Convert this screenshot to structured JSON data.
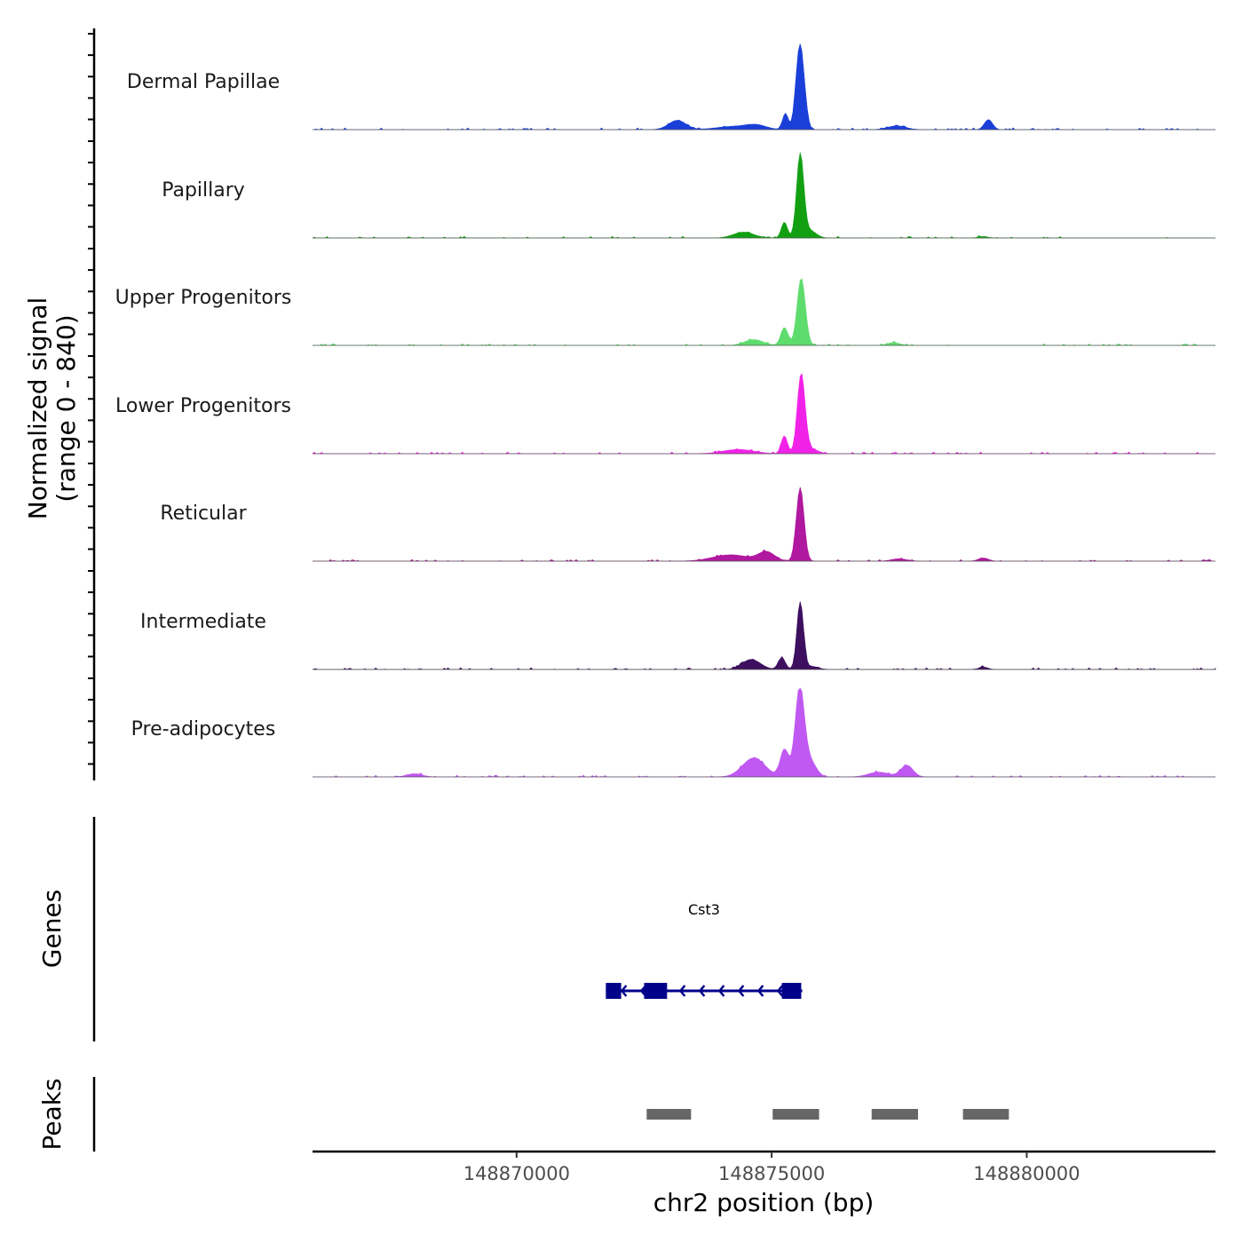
{
  "chart_data": {
    "type": "area",
    "title": "",
    "chromosome": "chr2",
    "xlabel": "chr2 position (bp)",
    "ylabel_line1": "Normalized signal",
    "ylabel_line2": "(range 0 - 840)",
    "y_range": [
      0,
      840
    ],
    "x_range": [
      148866000,
      148883700
    ],
    "x_ticks": [
      148870000,
      148875000,
      148880000
    ],
    "x_tick_labels": [
      "148870000",
      "148875000",
      "148880000"
    ],
    "tracks": [
      {
        "name": "Dermal Papillae",
        "color": "#1a3fd9",
        "peaks": [
          {
            "pos": 148873150,
            "height": 88,
            "width": 170
          },
          {
            "pos": 148874250,
            "height": 30,
            "width": 330
          },
          {
            "pos": 148874700,
            "height": 38,
            "width": 200
          },
          {
            "pos": 148875270,
            "height": 155,
            "width": 55
          },
          {
            "pos": 148875550,
            "height": 780,
            "width": 75
          },
          {
            "pos": 148875650,
            "height": 120,
            "width": 60
          },
          {
            "pos": 148877450,
            "height": 35,
            "width": 180
          },
          {
            "pos": 148879250,
            "height": 95,
            "width": 80
          }
        ]
      },
      {
        "name": "Papillary",
        "color": "#12a012",
        "peaks": [
          {
            "pos": 148874450,
            "height": 55,
            "width": 200
          },
          {
            "pos": 148875250,
            "height": 150,
            "width": 60
          },
          {
            "pos": 148875560,
            "height": 790,
            "width": 70
          },
          {
            "pos": 148875750,
            "height": 70,
            "width": 120
          },
          {
            "pos": 148879150,
            "height": 14,
            "width": 90
          }
        ]
      },
      {
        "name": "Upper Progenitors",
        "color": "#5edc6e",
        "peaks": [
          {
            "pos": 148874650,
            "height": 55,
            "width": 180
          },
          {
            "pos": 148875250,
            "height": 170,
            "width": 70
          },
          {
            "pos": 148875580,
            "height": 640,
            "width": 80
          },
          {
            "pos": 148877400,
            "height": 25,
            "width": 120
          }
        ]
      },
      {
        "name": "Lower Progenitors",
        "color": "#f122e8",
        "peaks": [
          {
            "pos": 148874350,
            "height": 40,
            "width": 300
          },
          {
            "pos": 148875250,
            "height": 170,
            "width": 60
          },
          {
            "pos": 148875580,
            "height": 760,
            "width": 75
          },
          {
            "pos": 148875800,
            "height": 40,
            "width": 120
          }
        ]
      },
      {
        "name": "Reticular",
        "color": "#b0189f",
        "peaks": [
          {
            "pos": 148874200,
            "height": 60,
            "width": 350
          },
          {
            "pos": 148874900,
            "height": 85,
            "width": 160
          },
          {
            "pos": 148875560,
            "height": 700,
            "width": 75
          },
          {
            "pos": 148877500,
            "height": 22,
            "width": 150
          },
          {
            "pos": 148879150,
            "height": 30,
            "width": 100
          }
        ]
      },
      {
        "name": "Intermediate",
        "color": "#3d0f5e",
        "peaks": [
          {
            "pos": 148874600,
            "height": 95,
            "width": 180
          },
          {
            "pos": 148875200,
            "height": 110,
            "width": 70
          },
          {
            "pos": 148875560,
            "height": 640,
            "width": 65
          },
          {
            "pos": 148875800,
            "height": 28,
            "width": 120
          },
          {
            "pos": 148879150,
            "height": 22,
            "width": 90
          }
        ]
      },
      {
        "name": "Pre-adipocytes",
        "color": "#c058f2",
        "peaks": [
          {
            "pos": 148868000,
            "height": 30,
            "width": 150
          },
          {
            "pos": 148874650,
            "height": 180,
            "width": 220
          },
          {
            "pos": 148875250,
            "height": 260,
            "width": 80
          },
          {
            "pos": 148875550,
            "height": 830,
            "width": 90
          },
          {
            "pos": 148875750,
            "height": 150,
            "width": 120
          },
          {
            "pos": 148877100,
            "height": 45,
            "width": 200
          },
          {
            "pos": 148877650,
            "height": 110,
            "width": 120
          }
        ]
      }
    ],
    "genes_track": {
      "title": "Genes",
      "color": "#00008b",
      "genes": [
        {
          "name": "Cst3",
          "strand": "-",
          "start": 148871750,
          "end": 148875600,
          "exons": [
            [
              148871750,
              148872050
            ],
            [
              148872500,
              148872950
            ],
            [
              148875200,
              148875580
            ]
          ]
        }
      ]
    },
    "peaks_track": {
      "title": "Peaks",
      "color": "#666666",
      "regions": [
        [
          148872550,
          148873420
        ],
        [
          148875020,
          148875930
        ],
        [
          148876960,
          148877870
        ],
        [
          148878750,
          148879650
        ]
      ]
    }
  }
}
